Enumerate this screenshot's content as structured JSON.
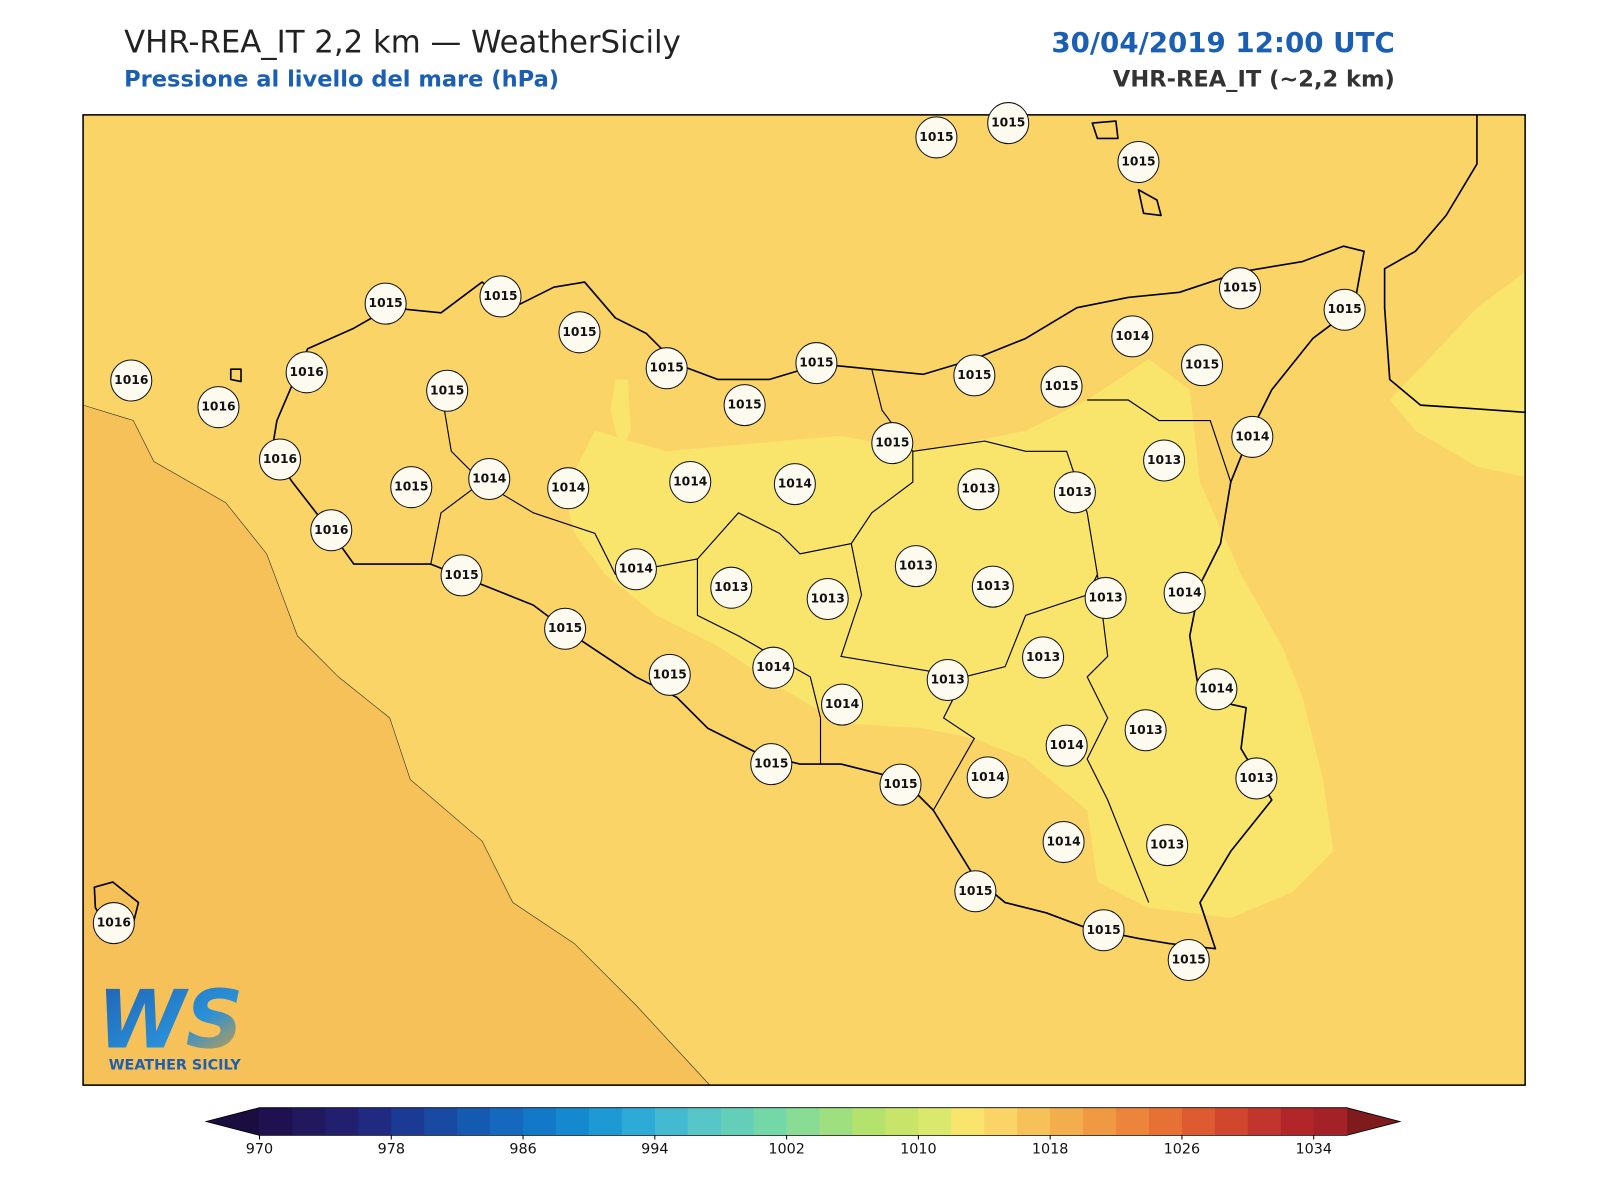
{
  "header": {
    "title": "VHR-REA_IT 2,2 km — WeatherSicily",
    "subtitle": "Pressione al livello del mare (hPa)",
    "datetime": "30/04/2019 12:00 UTC",
    "model": "VHR-REA_IT (~2,2 km)"
  },
  "stations": [
    1015,
    1015,
    1015,
    1015,
    1015,
    1015,
    1015,
    1015,
    1015,
    1016,
    1016,
    1016,
    1015,
    1016,
    1015,
    1014,
    1014,
    1014,
    1014,
    1016,
    1015,
    1014,
    1013,
    1013,
    1015,
    1015,
    1015,
    1014,
    1015,
    1015,
    1015,
    1014,
    1013,
    1013,
    1013,
    1013,
    1013,
    1013,
    1014,
    1015,
    1015,
    1014,
    1014,
    1013,
    1013,
    1014,
    1013,
    1014,
    1013,
    1014,
    1015,
    1015,
    1014,
    1013,
    1015,
    1015,
    1015,
    1016
  ],
  "colorbar": {
    "lim": [
      970,
      1036
    ],
    "ticks": [
      970,
      978,
      986,
      994,
      1002,
      1010,
      1018,
      1026,
      1034
    ],
    "colors": [
      "#1f1150",
      "#22185e",
      "#221f6e",
      "#1f2a80",
      "#1b3a93",
      "#1849a3",
      "#155ab1",
      "#1469bf",
      "#1279c8",
      "#1489cf",
      "#1d9ad4",
      "#2daad5",
      "#43bacf",
      "#56c6c6",
      "#64cfb8",
      "#74d7a8",
      "#88dc94",
      "#9ee07f",
      "#b3e26d",
      "#c8e56a",
      "#dbe86e",
      "#f9e46c",
      "#fad466",
      "#f5c158",
      "#f2ad4c",
      "#ef9942",
      "#ec853b",
      "#e77035",
      "#de5b31",
      "#d2462e",
      "#c2352c",
      "#b2262a",
      "#a52128"
    ],
    "under_color": "#1a0d40",
    "over_color": "#7f1a1d"
  },
  "logo": {
    "mark": "WS",
    "text": "WEATHER SICILY"
  }
}
